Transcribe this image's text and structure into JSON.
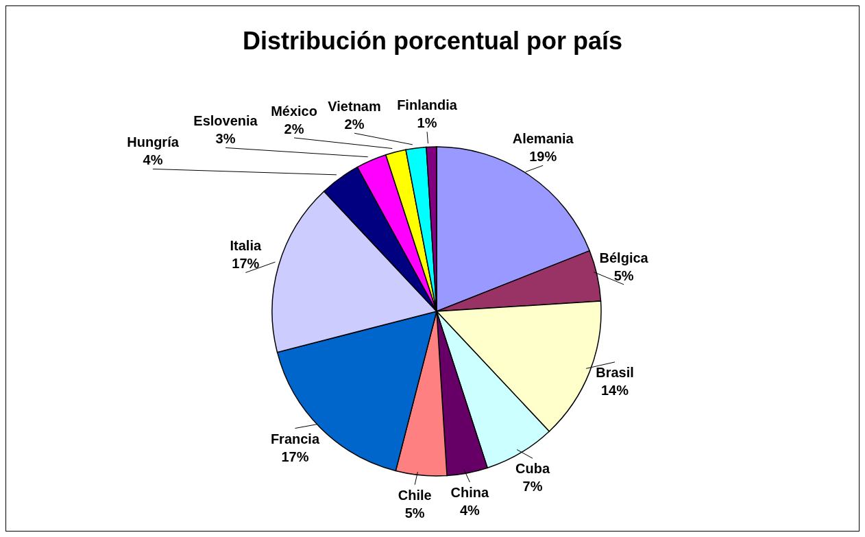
{
  "chart_data": {
    "type": "pie",
    "title": "Distribución porcentual por país",
    "categories": [
      "Alemania",
      "Bélgica",
      "Brasil",
      "Cuba",
      "China",
      "Chile",
      "Francia",
      "Italia",
      "Hungría",
      "Eslovenia",
      "México",
      "Vietnam",
      "Finlandia"
    ],
    "values": [
      19,
      5,
      14,
      7,
      4,
      5,
      17,
      17,
      4,
      3,
      2,
      2,
      1
    ],
    "value_labels": [
      "19%",
      "5%",
      "14%",
      "7%",
      "4%",
      "5%",
      "17%",
      "17%",
      "4%",
      "3%",
      "2%",
      "2%",
      "1%"
    ],
    "colors": [
      "#9999ff",
      "#993366",
      "#ffffcc",
      "#ccffff",
      "#660066",
      "#ff8080",
      "#0066cc",
      "#ccccff",
      "#000080",
      "#ff00ff",
      "#ffff00",
      "#00ffff",
      "#800080"
    ],
    "legend": false
  }
}
